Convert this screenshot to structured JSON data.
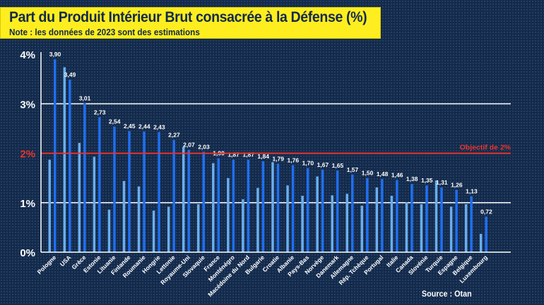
{
  "header": {
    "title": "Part du Produit Intérieur Brut consacrée à la Défense (%)",
    "subtitle": "Note : les données de 2023 sont des estimations"
  },
  "source": "Source : Otan",
  "chart_data": {
    "type": "bar",
    "title": "Part du Produit Intérieur Brut consacrée à la Défense (%)",
    "subtitle": "Note : les données de 2023 sont des estimations",
    "ylim": [
      0,
      4
    ],
    "yticks": [
      "0%",
      "1%",
      "2%",
      "3%",
      "4%"
    ],
    "grid": true,
    "target_line": {
      "value": 2,
      "label": "Objectif de 2%",
      "color": "#e8342e"
    },
    "colors": {
      "earlier": "#6aaef0",
      "latest": "#1f6ff0"
    },
    "categories": [
      "Pologne",
      "USA",
      "Grèce",
      "Estonie",
      "Lituanie",
      "Finlande",
      "Roumanie",
      "Hongrie",
      "Lettonie",
      "Royaume-Uni",
      "Slovaquie",
      "France",
      "Monténégro",
      "Macédoine du Nord",
      "Bulgarie",
      "Croatie",
      "Albanie",
      "Pays-Bas",
      "Norvège",
      "Danemark",
      "Allemagne",
      "Rép. Tchèque",
      "Portugal",
      "Italie",
      "Canada",
      "Slovénie",
      "Turquie",
      "Espagne",
      "Belgique",
      "Luxembourg"
    ],
    "series": [
      {
        "values": [
          1.87,
          3.74,
          2.21,
          1.93,
          0.86,
          1.44,
          1.33,
          0.84,
          0.92,
          2.13,
          0.97,
          1.8,
          1.5,
          1.07,
          1.3,
          1.82,
          1.35,
          1.14,
          1.53,
          1.15,
          1.18,
          0.94,
          1.31,
          1.14,
          1.01,
          0.97,
          1.45,
          0.92,
          0.97,
          0.37
        ]
      },
      {
        "values": [
          3.9,
          3.49,
          3.01,
          2.73,
          2.54,
          2.45,
          2.44,
          2.43,
          2.27,
          2.07,
          2.03,
          1.9,
          1.87,
          1.87,
          1.84,
          1.79,
          1.76,
          1.7,
          1.67,
          1.65,
          1.57,
          1.5,
          1.48,
          1.46,
          1.38,
          1.35,
          1.31,
          1.26,
          1.13,
          0.72
        ],
        "labels": [
          "3,90",
          "3,49",
          "3,01",
          "2,73",
          "2,54",
          "2,45",
          "2,44",
          "2,43",
          "2,27",
          "2,07",
          "2,03",
          "1,90",
          "1,87",
          "1,87",
          "1,84",
          "1,79",
          "1,76",
          "1,70",
          "1,67",
          "1,65",
          "1,57",
          "1,50",
          "1,48",
          "1,46",
          "1,38",
          "1,35",
          "1,31",
          "1,26",
          "1,13",
          "0,72"
        ]
      }
    ]
  }
}
